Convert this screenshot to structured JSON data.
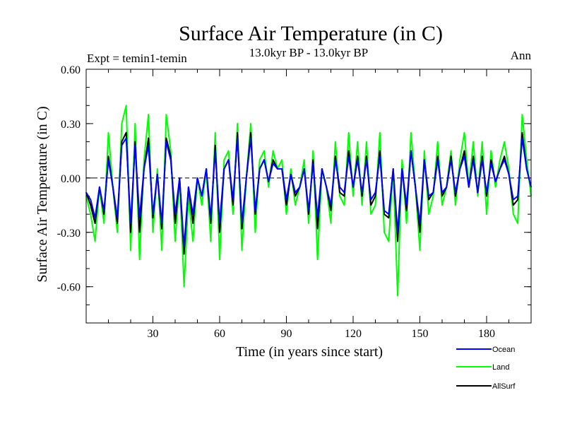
{
  "chart_data": {
    "type": "line",
    "title": "Surface Air Temperature (in C)",
    "subtitle": "13.0kyr BP - 13.0kyr BP",
    "left_label": "Expt = temin1-temin",
    "right_label": "Ann",
    "xlabel": "Time (in years since start)",
    "ylabel": "Surface Air Temperature (in C)",
    "xlim": [
      0,
      200
    ],
    "ylim": [
      -0.8,
      0.6
    ],
    "x_ticks": [
      30,
      60,
      90,
      120,
      150,
      180
    ],
    "x_tick_labels": [
      "30",
      "60",
      "90",
      "120",
      "150",
      "180"
    ],
    "y_ticks": [
      0.6,
      0.3,
      0.0,
      -0.3,
      -0.6
    ],
    "y_tick_labels": [
      "0.60",
      "0.30",
      "0.00",
      "-0.30",
      "-0.60"
    ],
    "zero_line": "dashed",
    "legend_position": "bottom-right",
    "colors": {
      "Ocean": "#0000ff",
      "Land": "#00ff00",
      "AllSurf": "#000000"
    },
    "x": [
      0,
      2,
      4,
      6,
      8,
      10,
      12,
      14,
      16,
      18,
      20,
      22,
      24,
      26,
      28,
      30,
      32,
      34,
      36,
      38,
      40,
      42,
      44,
      46,
      48,
      50,
      52,
      54,
      56,
      58,
      60,
      62,
      64,
      66,
      68,
      70,
      72,
      74,
      76,
      78,
      80,
      82,
      84,
      86,
      88,
      90,
      92,
      94,
      96,
      98,
      100,
      102,
      104,
      106,
      108,
      110,
      112,
      114,
      116,
      118,
      120,
      122,
      124,
      126,
      128,
      130,
      132,
      134,
      136,
      138,
      140,
      142,
      144,
      146,
      148,
      150,
      152,
      154,
      156,
      158,
      160,
      162,
      164,
      166,
      168,
      170,
      172,
      174,
      176,
      178,
      180,
      182,
      184,
      186,
      188,
      190,
      192,
      194,
      196,
      198,
      200
    ],
    "series": [
      {
        "name": "Land",
        "values": [
          -0.1,
          -0.2,
          -0.35,
          -0.05,
          -0.25,
          0.25,
          -0.05,
          -0.3,
          0.3,
          0.4,
          -0.4,
          0.3,
          -0.45,
          0.1,
          0.35,
          -0.3,
          0.05,
          -0.4,
          0.35,
          0.15,
          -0.35,
          0.0,
          -0.6,
          -0.1,
          -0.35,
          0.0,
          -0.15,
          0.05,
          -0.35,
          0.25,
          -0.45,
          0.1,
          0.15,
          -0.2,
          0.3,
          -0.4,
          0.0,
          0.3,
          -0.3,
          0.1,
          0.15,
          -0.05,
          0.15,
          0.05,
          0.1,
          -0.2,
          0.05,
          -0.15,
          -0.05,
          0.1,
          -0.25,
          0.15,
          -0.45,
          0.05,
          -0.05,
          -0.25,
          0.2,
          -0.1,
          -0.15,
          0.25,
          -0.1,
          0.2,
          -0.15,
          0.2,
          -0.2,
          -0.15,
          0.25,
          -0.3,
          -0.35,
          0.05,
          -0.65,
          0.1,
          -0.25,
          0.25,
          -0.05,
          -0.4,
          0.15,
          -0.2,
          -0.1,
          0.2,
          -0.15,
          -0.05,
          0.15,
          -0.15,
          0.1,
          0.25,
          -0.05,
          0.2,
          -0.1,
          0.2,
          -0.2,
          0.15,
          -0.05,
          0.1,
          0.2,
          0.05,
          -0.2,
          -0.25,
          0.35,
          0.1,
          -0.1
        ]
      },
      {
        "name": "AllSurf",
        "values": [
          -0.08,
          -0.15,
          -0.25,
          -0.05,
          -0.2,
          0.12,
          -0.05,
          -0.25,
          0.2,
          0.25,
          -0.3,
          0.2,
          -0.3,
          0.05,
          0.22,
          -0.22,
          0.02,
          -0.28,
          0.22,
          0.12,
          -0.25,
          0.0,
          -0.42,
          -0.05,
          -0.25,
          0.0,
          -0.1,
          0.05,
          -0.25,
          0.18,
          -0.3,
          0.05,
          0.1,
          -0.15,
          0.25,
          -0.28,
          0.0,
          0.25,
          -0.2,
          0.05,
          0.1,
          -0.02,
          0.1,
          0.05,
          0.05,
          -0.15,
          0.02,
          -0.1,
          -0.05,
          0.05,
          -0.2,
          0.1,
          -0.28,
          0.05,
          -0.05,
          -0.18,
          0.12,
          -0.08,
          -0.1,
          0.15,
          -0.05,
          0.12,
          -0.1,
          0.12,
          -0.15,
          -0.1,
          0.15,
          -0.2,
          -0.22,
          0.05,
          -0.35,
          0.05,
          -0.18,
          0.15,
          -0.05,
          -0.3,
          0.1,
          -0.12,
          -0.08,
          0.12,
          -0.1,
          -0.05,
          0.12,
          -0.1,
          0.05,
          0.15,
          -0.05,
          0.12,
          -0.08,
          0.12,
          -0.1,
          0.1,
          -0.02,
          0.05,
          0.12,
          0.02,
          -0.15,
          -0.12,
          0.25,
          0.05,
          -0.05
        ]
      },
      {
        "name": "Ocean",
        "values": [
          -0.08,
          -0.12,
          -0.22,
          -0.05,
          -0.18,
          0.1,
          -0.05,
          -0.22,
          0.18,
          0.22,
          -0.25,
          0.18,
          -0.22,
          0.05,
          0.18,
          -0.2,
          0.02,
          -0.25,
          0.2,
          0.1,
          -0.2,
          0.0,
          -0.38,
          -0.05,
          -0.2,
          0.0,
          -0.1,
          0.05,
          -0.22,
          0.15,
          -0.25,
          0.05,
          0.1,
          -0.12,
          0.22,
          -0.25,
          0.0,
          0.22,
          -0.18,
          0.05,
          0.1,
          -0.02,
          0.08,
          0.05,
          0.05,
          -0.12,
          0.02,
          -0.08,
          -0.05,
          0.05,
          -0.18,
          0.08,
          -0.22,
          0.05,
          -0.05,
          -0.15,
          0.1,
          -0.05,
          -0.08,
          0.12,
          -0.05,
          0.1,
          -0.08,
          0.1,
          -0.12,
          -0.08,
          0.12,
          -0.18,
          -0.2,
          0.05,
          -0.3,
          0.05,
          -0.15,
          0.15,
          -0.05,
          -0.25,
          0.1,
          -0.1,
          -0.08,
          0.1,
          -0.08,
          -0.05,
          0.1,
          -0.08,
          0.05,
          0.12,
          -0.05,
          0.1,
          -0.08,
          0.1,
          -0.08,
          0.08,
          -0.02,
          0.05,
          0.1,
          0.02,
          -0.12,
          -0.1,
          0.22,
          0.05,
          -0.05
        ]
      }
    ],
    "legend": [
      "Ocean",
      "Land",
      "AllSurf"
    ]
  }
}
